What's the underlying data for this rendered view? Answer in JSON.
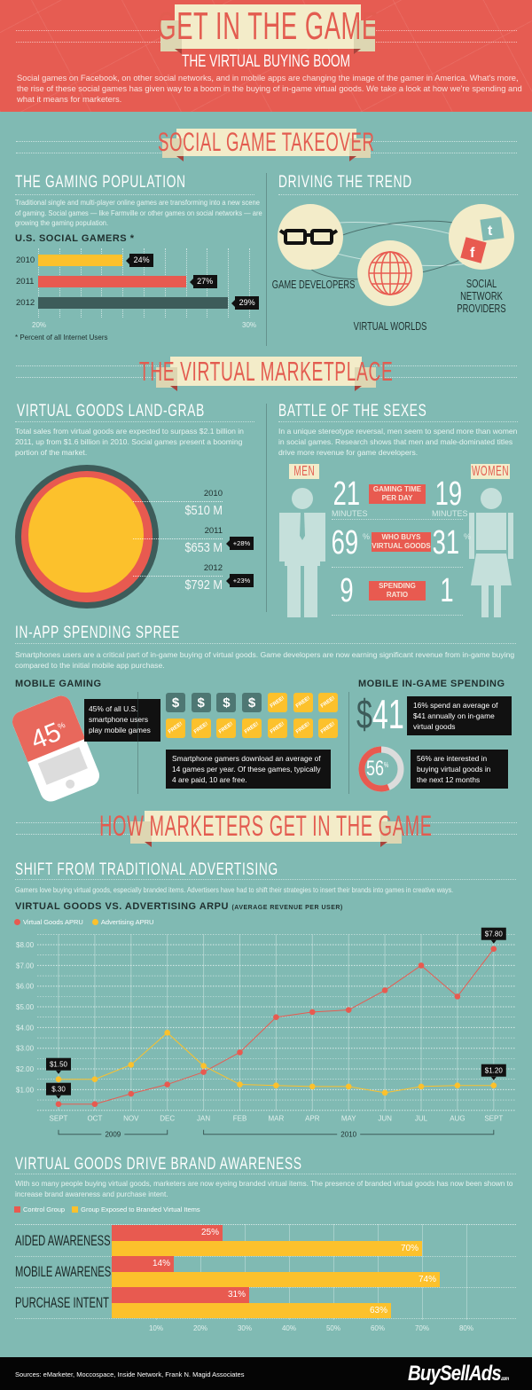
{
  "header": {
    "title": "GET IN THE GAME",
    "subtitle": "THE VIRTUAL BUYING BOOM",
    "intro": "Social games on Facebook, on other social networks, and in mobile apps are changing the image of the gamer in America. What's more, the rise of these social games has given way to a boom in the buying of in-game virtual goods.  We take a look at how we're spending and what it means for marketers."
  },
  "section1": {
    "banner": "SOCIAL GAME TAKEOVER",
    "gaming": {
      "heading": "THE GAMING POPULATION",
      "text": "Traditional single and multi-player online games are transforming into a new scene of gaming. Social games — like Farmville or other games on social networks — are growing the gaming population."
    },
    "trend": {
      "heading": "DRIVING THE TREND",
      "nodes": [
        {
          "label": "GAME DEVELOPERS",
          "icon": "glasses-icon"
        },
        {
          "label": "VIRTUAL WORLDS",
          "icon": "globe-icon"
        },
        {
          "label": "SOCIAL NETWORK PROVIDERS",
          "icon": "twitter-facebook-icon"
        }
      ]
    }
  },
  "section2": {
    "banner": "THE VIRTUAL MARKETPLACE",
    "landgrab": {
      "heading": "VIRTUAL GOODS LAND-GRAB",
      "text": "Total sales from virtual goods are expected to surpass $2.1 billion in 2011, up from $1.6 billion in 2010. Social games present a booming portion of the market."
    },
    "battle": {
      "heading": "BATTLE OF THE SEXES",
      "text": "In a unique stereotype reversal, men seem to spend more than women in social games. Research shows that men and male-dominated titles drive more revenue for game developers.",
      "men_label": "MEN",
      "women_label": "WOMEN",
      "rows": [
        {
          "men": "21",
          "men_unit": "MINUTES",
          "label": "GAMING TIME PER DAY",
          "women": "19",
          "women_unit": "MINUTES"
        },
        {
          "men": "69",
          "men_unit": "%",
          "label": "WHO BUYS VIRTUAL GOODS",
          "women": "31",
          "women_unit": "%"
        },
        {
          "men": "9",
          "label": "SPENDING RATIO",
          "women": "1"
        }
      ]
    }
  },
  "inapp": {
    "heading": "IN-APP SPENDING SPREE",
    "text": "Smartphones users are a critical part of in-game buying of virtual goods.  Game developers are now earning significant revenue from in-game buying compared to the initial mobile app purchase.",
    "mobile_gaming": {
      "heading": "MOBILE GAMING",
      "stat": "45",
      "stat_unit": "%",
      "callout": "45% of all U.S. smartphone users play mobile games"
    },
    "downloads": {
      "paid": 4,
      "free": 10,
      "paid_symbol": "$",
      "free_label": "FREE!",
      "callout": "Smartphone gamers download an average of 14 games per year. Of these games, typically 4 are paid, 10 are free."
    },
    "spending": {
      "heading": "MOBILE IN-GAME SPENDING",
      "amount_symbol": "$",
      "amount": "41",
      "callout1": "16% spend an average of $41 annually on in-game virtual goods",
      "ring_value": 56,
      "ring_label": "56",
      "ring_unit": "%",
      "callout2": "56% are interested in buying virtual goods in the next 12 months"
    }
  },
  "marketers": {
    "banner": "HOW MARKETERS GET IN THE GAME",
    "shift": {
      "heading": "SHIFT FROM TRADITIONAL ADVERTISING",
      "text": "Gamers love buying virtual goods, especially branded items. Advertisers have had to shift their strategies to insert their brands into games in creative ways."
    },
    "brand": {
      "heading": "VIRTUAL GOODS DRIVE BRAND AWARENESS",
      "text": "With so many people buying virtual goods, marketers are now eyeing branded virtual items. The presence of branded virtual goods has now been shown to increase brand awareness and purchase intent."
    }
  },
  "footer": {
    "sources": "Sources: eMarketer, Moccospace, Inside Network, Frank N. Magid Associates",
    "logo": "BuySellAds",
    "logo_suffix": ".com"
  },
  "colors": {
    "red": "#e85a50",
    "yellow": "#fcc12c",
    "dark_teal": "#3d5c5a",
    "cream": "#f3ecc9",
    "background": "#80bab3",
    "header_red": "#e65c52"
  },
  "chart_data": [
    {
      "type": "bar",
      "orientation": "horizontal",
      "title": "U.S. SOCIAL GAMERS *",
      "categories": [
        "2010",
        "2011",
        "2012"
      ],
      "values": [
        24,
        27,
        29
      ],
      "value_labels": [
        "24%",
        "27%",
        "29%"
      ],
      "colors": [
        "#fcc12c",
        "#e85a50",
        "#3d5c5a"
      ],
      "xlim": [
        20,
        30
      ],
      "tick_labels": [
        "20%",
        "30%"
      ],
      "note": "* Percent of all Internet Users",
      "grid": true
    },
    {
      "type": "bubble",
      "categories": [
        "2010",
        "2011",
        "2012"
      ],
      "values": [
        510,
        653,
        792
      ],
      "value_labels": [
        "$510 M",
        "$653 M",
        "$792 M"
      ],
      "changes": [
        null,
        "+28%",
        "+23%"
      ],
      "colors": [
        "#fcc12c",
        "#e85a50",
        "#3d5c5a"
      ]
    },
    {
      "type": "line",
      "title": "VIRTUAL GOODS VS. ADVERTISING ARPU",
      "subtitle": "(AVERAGE REVENUE PER USER)",
      "x": [
        "SEPT",
        "OCT",
        "NOV",
        "DEC",
        "JAN",
        "FEB",
        "MAR",
        "APR",
        "MAY",
        "JUN",
        "JUL",
        "AUG",
        "SEPT"
      ],
      "year_groups": [
        {
          "label": "2009",
          "from": 0,
          "to": 3
        },
        {
          "label": "2010",
          "from": 4,
          "to": 12
        }
      ],
      "series": [
        {
          "name": "Virtual Goods APRU",
          "color": "#e85a50",
          "values": [
            0.3,
            0.3,
            0.8,
            1.25,
            1.85,
            2.8,
            4.5,
            4.75,
            4.85,
            5.8,
            7.0,
            5.5,
            7.8
          ]
        },
        {
          "name": "Advertising APRU",
          "color": "#fcc12c",
          "values": [
            1.5,
            1.5,
            2.2,
            3.75,
            2.15,
            1.25,
            1.2,
            1.15,
            1.15,
            0.85,
            1.15,
            1.2,
            1.2
          ]
        }
      ],
      "ylim": [
        0,
        8.5
      ],
      "yticks": [
        1,
        2,
        3,
        4,
        5,
        6,
        7,
        8
      ],
      "ytick_labels": [
        "$1.00",
        "$2.00",
        "$3.00",
        "$4.00",
        "$5.00",
        "$6.00",
        "$7.00",
        "$8.00"
      ],
      "annotations": [
        {
          "series": 1,
          "index": 0,
          "label": "$1.50"
        },
        {
          "series": 0,
          "index": 0,
          "label": "$.30"
        },
        {
          "series": 0,
          "index": 12,
          "label": "$7.80"
        },
        {
          "series": 1,
          "index": 12,
          "label": "$1.20"
        }
      ],
      "legend": "top-left",
      "grid": true
    },
    {
      "type": "bar",
      "orientation": "horizontal",
      "categories": [
        "AIDED AWARENESS",
        "MOBILE AWARENESS",
        "PURCHASE INTENT"
      ],
      "series": [
        {
          "name": "Control Group",
          "color": "#e85a50",
          "values": [
            25,
            14,
            31
          ]
        },
        {
          "name": "Group Exposed to Branded Virtual Items",
          "color": "#fcc12c",
          "values": [
            70,
            74,
            63
          ]
        }
      ],
      "xlim": [
        0,
        80
      ],
      "xticks": [
        10,
        20,
        30,
        40,
        50,
        60,
        70,
        80
      ],
      "xtick_labels": [
        "10%",
        "20%",
        "30%",
        "40%",
        "50%",
        "60%",
        "70%",
        "80%"
      ],
      "legend": "top-left",
      "grid": true
    }
  ]
}
